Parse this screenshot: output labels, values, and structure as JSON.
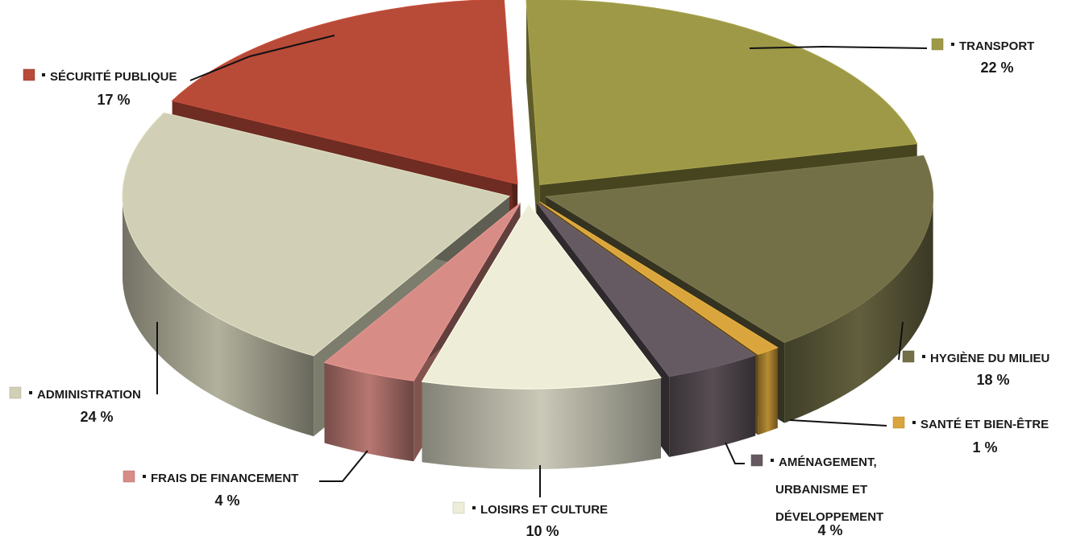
{
  "chart_data": {
    "type": "pie",
    "title": "",
    "slices": [
      {
        "label": "TRANSPORT",
        "value": 22,
        "value_label": "22 %",
        "color": "#9d9947"
      },
      {
        "label": "HYGIÈNE DU MILIEU",
        "value": 18,
        "value_label": "18 %",
        "color": "#737048"
      },
      {
        "label": "SANTÉ ET BIEN-ÊTRE",
        "value": 1,
        "value_label": "1 %",
        "color": "#d9a53c"
      },
      {
        "label": "AMÉNAGEMENT, URBANISME ET DÉVELOPPEMENT",
        "label_lines": [
          "AMÉNAGEMENT,",
          "URBANISME ET",
          "DÉVELOPPEMENT"
        ],
        "value": 4,
        "value_label": "4 %",
        "color": "#665a62"
      },
      {
        "label": "LOISIRS ET CULTURE",
        "value": 10,
        "value_label": "10 %",
        "color": "#eeedd8"
      },
      {
        "label": "FRAIS DE FINANCEMENT",
        "value": 4,
        "value_label": "4 %",
        "color": "#d88c86"
      },
      {
        "label": "ADMINISTRATION",
        "value": 24,
        "value_label": "24 %",
        "color": "#d1d0b7"
      },
      {
        "label": "SÉCURITÉ PUBLIQUE",
        "value": 17,
        "value_label": "17 %",
        "color": "#b84a38"
      }
    ],
    "style": "3d-exploded",
    "legend": "labels-with-leader-lines"
  }
}
